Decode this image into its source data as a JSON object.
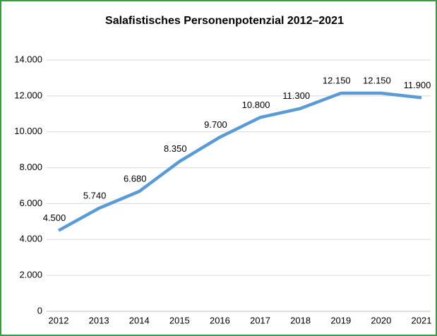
{
  "chart_data": {
    "type": "line",
    "title": "Salafistisches Personenpotenzial 2012–2021",
    "categories": [
      "2012",
      "2013",
      "2014",
      "2015",
      "2016",
      "2017",
      "2018",
      "2019",
      "2020",
      "2021"
    ],
    "values": [
      4500,
      5740,
      6680,
      8350,
      9700,
      10800,
      11300,
      12150,
      12150,
      11900
    ],
    "value_labels": [
      "4.500",
      "5.740",
      "6.680",
      "8.350",
      "9.700",
      "10.800",
      "11.300",
      "12.150",
      "12.150",
      "11.900"
    ],
    "color": "#5b9bd5",
    "ylim": [
      0,
      14000
    ],
    "yticks": [
      0,
      {
        "value": 2000,
        "label": "2.000"
      },
      {
        "value": 4000,
        "label": "4.000"
      },
      {
        "value": 6000,
        "label": "6.000"
      },
      {
        "value": 8000,
        "label": "8.000"
      },
      {
        "value": 10000,
        "label": "10.000"
      },
      {
        "value": 12000,
        "label": "12.000"
      },
      {
        "value": 14000,
        "label": "14.000"
      }
    ],
    "grid": true
  }
}
